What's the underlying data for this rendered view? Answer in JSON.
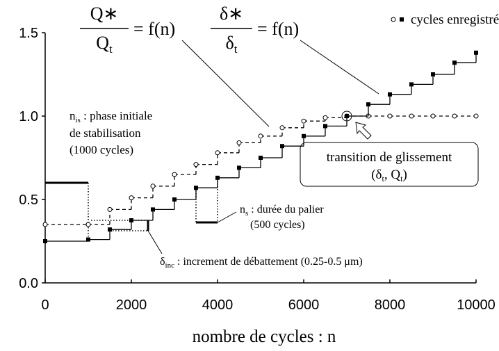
{
  "chart_data": {
    "type": "step",
    "x_label": "nombre de cycles  : n",
    "xlim": [
      0,
      10000
    ],
    "ylim": [
      0,
      1.5
    ],
    "xticks": [
      0,
      2000,
      4000,
      6000,
      8000,
      10000
    ],
    "yticks": [
      {
        "value": 0,
        "label": "0.0"
      },
      0.5,
      {
        "value": 1,
        "label": "1.0"
      },
      1.5
    ],
    "legend_label": "cycles enregistrés",
    "x": [
      0,
      1000,
      1500,
      2000,
      2500,
      3000,
      3500,
      4000,
      4500,
      5000,
      5500,
      6000,
      6500,
      7000,
      7500,
      8000,
      8500,
      9000,
      9500,
      10000
    ],
    "series": [
      {
        "color": "#000000",
        "marker": "open",
        "linestyle": "dashed",
        "values": [
          0.35,
          0.35,
          0.44,
          0.51,
          0.58,
          0.65,
          0.71,
          0.78,
          0.84,
          0.88,
          0.93,
          0.97,
          0.99,
          1.0,
          1.0,
          1.0,
          1.0,
          1.0,
          1.0,
          1.0
        ]
      },
      {
        "color": "#000000",
        "marker": "filled",
        "linestyle": "solid",
        "values": [
          0.25,
          0.26,
          0.32,
          0.375,
          0.44,
          0.5,
          0.57,
          0.63,
          0.69,
          0.75,
          0.82,
          0.88,
          0.94,
          1.0,
          1.07,
          1.13,
          1.19,
          1.25,
          1.32,
          1.38
        ]
      }
    ],
    "annotations": {
      "q_ratio": {
        "num": "Q∗",
        "den": "Q",
        "den_sub": "t",
        "rhs": "= f(n)"
      },
      "d_ratio": {
        "num": "δ∗",
        "den": "δ",
        "den_sub": "t",
        "rhs": "= f(n)"
      },
      "n_is": {
        "sym": "n",
        "sub": "is",
        "text": " :  phase initiale",
        "line2": "de stabilisation",
        "line3": "(1000 cycles)"
      },
      "n_s": {
        "sym": "n",
        "sub": "s",
        "text": " : durée du palier",
        "line2": "(500 cycles)"
      },
      "d_inc": {
        "sym": "δ",
        "sub": "inc",
        "text": " : increment de débattement (0.25-0.5 μm)"
      },
      "transition": {
        "line1": "transition de glissement",
        "open": "(δ",
        "sub1": "t",
        "mid": ", Q",
        "sub2": "t",
        "close": ")"
      }
    }
  }
}
